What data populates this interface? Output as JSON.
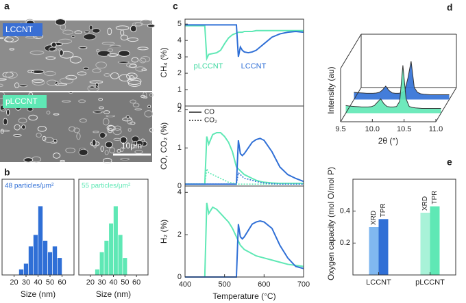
{
  "chart_data": [
    {
      "type": "image",
      "panel": "a",
      "labels": [
        "LCCNT",
        "pLCCNT"
      ],
      "label_colors": [
        "#3a6fd4",
        "#5fe8b5"
      ],
      "scale_bar": "10μm"
    },
    {
      "type": "histogram",
      "panel": "b",
      "annotation": "48 particles/μm²",
      "color": "#2f6fd6",
      "bins": [
        24,
        28,
        32,
        36,
        40,
        44,
        48,
        52,
        56,
        60
      ],
      "counts": [
        1,
        2,
        5,
        7,
        12,
        6,
        4,
        5,
        3
      ],
      "xlim": [
        10,
        70
      ],
      "xticks": [
        20,
        30,
        40,
        50,
        60
      ],
      "xlabel": "Size (nm)"
    },
    {
      "type": "histogram",
      "annotation": "55 particles/μm²",
      "color": "#5fe8b5",
      "bins": [
        24,
        28,
        32,
        36,
        40,
        44,
        48,
        52
      ],
      "counts": [
        1,
        4,
        6,
        9,
        12,
        7,
        3
      ],
      "xlim": [
        10,
        70
      ],
      "xticks": [
        20,
        30,
        40,
        50,
        60
      ],
      "xlabel": "Size (nm)"
    },
    {
      "type": "line",
      "panel": "c",
      "ylabel": "CH₄ (%)",
      "ylim": [
        0,
        5.3
      ],
      "yticks": [
        0,
        1,
        2,
        3,
        4,
        5
      ],
      "xlim": [
        400,
        700
      ],
      "x": [
        400,
        420,
        440,
        450,
        455,
        460,
        470,
        480,
        490,
        500,
        510,
        520,
        530,
        535,
        540,
        545,
        550,
        560,
        570,
        580,
        590,
        600,
        620,
        640,
        660,
        680,
        700
      ],
      "series": [
        {
          "color": "#5fe8b5",
          "dash": "solid",
          "values": [
            4.9,
            4.9,
            4.9,
            4.9,
            2.9,
            3.15,
            3.2,
            3.25,
            3.4,
            3.8,
            4.15,
            4.35,
            4.45,
            4.5,
            4.5,
            4.5,
            4.55,
            4.55,
            4.55,
            4.6,
            4.6,
            4.6,
            4.6,
            4.6,
            4.6,
            4.6,
            4.6
          ]
        },
        {
          "color": "#2f6fd6",
          "dash": "solid",
          "values": [
            4.95,
            4.95,
            4.95,
            4.95,
            4.95,
            4.95,
            4.95,
            4.95,
            4.95,
            4.95,
            4.95,
            4.95,
            4.95,
            3.0,
            3.6,
            3.4,
            3.3,
            3.25,
            3.3,
            3.4,
            3.6,
            3.8,
            4.2,
            4.4,
            4.5,
            4.55,
            4.5
          ]
        }
      ],
      "annotations": [
        {
          "text": "pLCCNT",
          "color": "#3fd8a0"
        },
        {
          "text": "LCCNT",
          "color": "#2f6fd6"
        }
      ]
    },
    {
      "type": "line",
      "ylabel": "CO, CO₂ (%)",
      "ylim": [
        0,
        2.1
      ],
      "yticks": [
        0,
        1,
        2
      ],
      "xlim": [
        400,
        700
      ],
      "x": [
        400,
        420,
        440,
        450,
        455,
        460,
        470,
        480,
        490,
        500,
        510,
        520,
        530,
        535,
        540,
        545,
        550,
        560,
        570,
        580,
        590,
        600,
        620,
        640,
        660,
        680,
        700
      ],
      "series": [
        {
          "color": "#5fe8b5",
          "dash": "solid",
          "values": [
            0.05,
            0.05,
            0.05,
            0.05,
            1.3,
            1.1,
            1.35,
            1.4,
            1.4,
            1.3,
            1.15,
            0.9,
            0.5,
            0.45,
            0.4,
            0.35,
            0.3,
            0.25,
            0.2,
            0.15,
            0.12,
            0.1,
            0.08,
            0.07,
            0.07,
            0.07,
            0.07
          ]
        },
        {
          "color": "#2f6fd6",
          "dash": "solid",
          "values": [
            0.05,
            0.05,
            0.05,
            0.05,
            0.05,
            0.05,
            0.05,
            0.05,
            0.05,
            0.05,
            0.05,
            0.05,
            0.05,
            1.2,
            0.85,
            0.8,
            0.85,
            1.0,
            1.15,
            1.22,
            1.25,
            1.2,
            0.9,
            0.5,
            0.3,
            0.2,
            0.12
          ]
        },
        {
          "color": "#5fe8b5",
          "dash": "dotted",
          "values": [
            0.05,
            0.05,
            0.05,
            0.05,
            0.45,
            0.35,
            0.3,
            0.25,
            0.2,
            0.15,
            0.1,
            0.08,
            0.06,
            0.05,
            0.05,
            0.05,
            0.05,
            0.05,
            0.05,
            0.05,
            0.05,
            0.05,
            0.05,
            0.05,
            0.05,
            0.05,
            0.05
          ]
        },
        {
          "color": "#2f6fd6",
          "dash": "dotted",
          "values": [
            0.05,
            0.05,
            0.05,
            0.05,
            0.05,
            0.05,
            0.05,
            0.05,
            0.05,
            0.05,
            0.05,
            0.05,
            0.05,
            0.35,
            0.3,
            0.25,
            0.2,
            0.18,
            0.15,
            0.12,
            0.1,
            0.08,
            0.06,
            0.05,
            0.05,
            0.05,
            0.05
          ]
        }
      ],
      "legend": [
        {
          "name": "CO",
          "dash": "solid"
        },
        {
          "name": "CO₂",
          "dash": "dotted"
        }
      ]
    },
    {
      "type": "line",
      "ylabel": "H₂ (%)",
      "ylim": [
        0,
        4.3
      ],
      "yticks": [
        0,
        2,
        4
      ],
      "xlim": [
        400,
        700
      ],
      "xticks": [
        400,
        500,
        600,
        700
      ],
      "xlabel": "Temperature (°C)",
      "x": [
        400,
        420,
        440,
        450,
        455,
        460,
        470,
        480,
        490,
        500,
        510,
        520,
        530,
        535,
        540,
        545,
        550,
        560,
        570,
        580,
        590,
        600,
        620,
        640,
        660,
        680,
        700
      ],
      "series": [
        {
          "color": "#5fe8b5",
          "dash": "solid",
          "values": [
            0,
            0,
            0,
            0,
            3.5,
            3.0,
            3.3,
            3.2,
            3.0,
            2.8,
            2.6,
            2.3,
            1.9,
            1.7,
            1.5,
            1.4,
            1.3,
            1.2,
            1.1,
            1.0,
            0.95,
            0.9,
            0.8,
            0.7,
            0.6,
            0.55,
            0.5
          ]
        },
        {
          "color": "#2f6fd6",
          "dash": "solid",
          "values": [
            0,
            0,
            0,
            0,
            0,
            0,
            0,
            0,
            0,
            0,
            0,
            0,
            0,
            2.5,
            1.9,
            1.8,
            1.9,
            2.2,
            2.5,
            2.6,
            2.65,
            2.6,
            2.3,
            1.5,
            0.9,
            0.5,
            0.4
          ]
        }
      ]
    },
    {
      "type": "waterfall",
      "panel": "d",
      "ylabel": "Intensity (au)",
      "xlabel": "2θ (°)",
      "xlim": [
        9.5,
        11.0
      ],
      "xticks": [
        9.5,
        {
          "value": 10,
          "label": "10.0"
        },
        10.5,
        {
          "value": 11,
          "label": "11.0"
        }
      ],
      "x": [
        9.5,
        9.55,
        9.6,
        9.65,
        9.7,
        9.75,
        9.8,
        9.85,
        9.9,
        9.95,
        10,
        10.05,
        10.1,
        10.15,
        10.2,
        10.25,
        10.3,
        10.35,
        10.4,
        10.45,
        10.5,
        10.55,
        10.6,
        10.65,
        10.7,
        10.75,
        10.8,
        10.85,
        10.9,
        10.95,
        11
      ],
      "series": [
        {
          "color": "#2f6fd6",
          "values": [
            1.5,
            1.45,
            1.4,
            1.35,
            1.3,
            1.3,
            1.3,
            1.35,
            1.5,
            2.0,
            2.8,
            1.9,
            1.4,
            1.3,
            1.3,
            1.4,
            1.8,
            4.5,
            8,
            2.5,
            1.5,
            1.2,
            1.1,
            1.05,
            1,
            1,
            1,
            1,
            1,
            1,
            1
          ]
        },
        {
          "color": "#5fe8b5",
          "values": [
            1.6,
            1.5,
            1.45,
            1.4,
            1.35,
            1.3,
            1.3,
            1.3,
            1.35,
            1.6,
            2.3,
            3.0,
            2.0,
            1.4,
            1.3,
            1.3,
            1.4,
            2.5,
            10,
            3,
            1.4,
            1.2,
            1.1,
            1.05,
            1,
            1,
            1,
            1,
            1,
            1,
            1
          ]
        }
      ]
    },
    {
      "type": "bar",
      "panel": "e",
      "ylabel": "Oxygen capacity (mol O/mol P)",
      "ylim": [
        0,
        0.6
      ],
      "yticks": [
        0.2,
        0.4
      ],
      "categories": [
        "LCCNT",
        "pLCCNT"
      ],
      "series": [
        {
          "name": "XRD",
          "colors": [
            "#80b8f0",
            "#a8f2d8"
          ],
          "values": [
            0.3,
            0.39
          ]
        },
        {
          "name": "TPR",
          "colors": [
            "#2f6fd6",
            "#5fe8b5"
          ],
          "values": [
            0.35,
            0.43
          ]
        }
      ]
    }
  ]
}
